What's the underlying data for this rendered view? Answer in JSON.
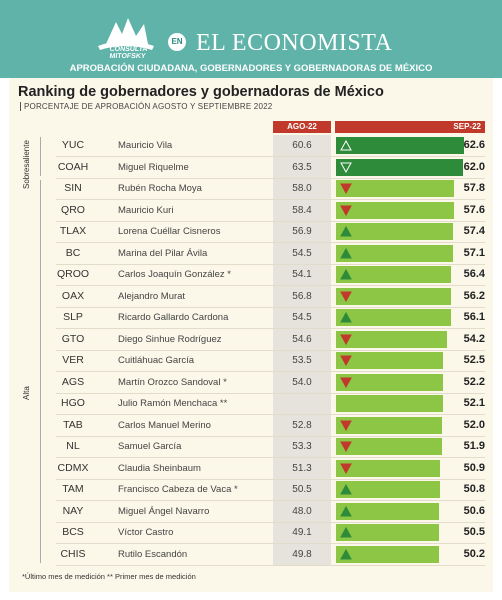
{
  "header": {
    "logo_text": "CONSULTA MITOFSKY",
    "en_badge": "EN",
    "title": "EL ECONOMISTA",
    "subtitle": "APROBACIÓN CIUDADANA, GOBERNADORES Y GOBERNADORAS DE MÉXICO"
  },
  "chart_data": {
    "type": "bar",
    "title": "Ranking de gobernadores y gobernadoras de México",
    "subtitle": "PORCENTAJE DE APROBACIÓN AGOSTO Y SEPTIEMBRE 2022",
    "columns": [
      "AGO-22",
      "SEP-22"
    ],
    "groups": [
      {
        "label": "Sobresaliente",
        "from": 0,
        "to": 1
      },
      {
        "label": "Alta",
        "from": 2,
        "to": 19
      }
    ],
    "xlim": [
      0,
      63
    ],
    "colors": {
      "up_dark": "#2e8b3a",
      "up": "#8dc544",
      "down": "#8dc544",
      "header": "#c0392b",
      "arrow_up": "#2e8b3a",
      "arrow_down": "#c0392b"
    },
    "rows": [
      {
        "code": "YUC",
        "name": "Mauricio Vila",
        "aug": "60.6",
        "sep": 62.6,
        "trend": "up",
        "tier": "Sobresaliente"
      },
      {
        "code": "COAH",
        "name": "Miguel Riquelme",
        "aug": "63.5",
        "sep": 62.0,
        "trend": "down",
        "tier": "Sobresaliente"
      },
      {
        "code": "SIN",
        "name": "Rubén Rocha Moya",
        "aug": "58.0",
        "sep": 57.8,
        "trend": "down",
        "tier": "Alta"
      },
      {
        "code": "QRO",
        "name": "Mauricio Kuri",
        "aug": "58.4",
        "sep": 57.6,
        "trend": "down",
        "tier": "Alta"
      },
      {
        "code": "TLAX",
        "name": "Lorena Cuéllar Cisneros",
        "aug": "56.9",
        "sep": 57.4,
        "trend": "up",
        "tier": "Alta"
      },
      {
        "code": "BC",
        "name": "Marina del Pilar Ávila",
        "aug": "54.5",
        "sep": 57.1,
        "trend": "up",
        "tier": "Alta"
      },
      {
        "code": "QROO",
        "name": "Carlos Joaquín González *",
        "aug": "54.1",
        "sep": 56.4,
        "trend": "up",
        "tier": "Alta"
      },
      {
        "code": "OAX",
        "name": "Alejandro Murat",
        "aug": "56.8",
        "sep": 56.2,
        "trend": "down",
        "tier": "Alta"
      },
      {
        "code": "SLP",
        "name": "Ricardo Gallardo Cardona",
        "aug": "54.5",
        "sep": 56.1,
        "trend": "up",
        "tier": "Alta"
      },
      {
        "code": "GTO",
        "name": "Diego Sinhue Rodríguez",
        "aug": "54.6",
        "sep": 54.2,
        "trend": "down",
        "tier": "Alta"
      },
      {
        "code": "VER",
        "name": "Cuitláhuac García",
        "aug": "53.5",
        "sep": 52.5,
        "trend": "down",
        "tier": "Alta"
      },
      {
        "code": "AGS",
        "name": "Martín Orozco Sandoval *",
        "aug": "54.0",
        "sep": 52.2,
        "trend": "down",
        "tier": "Alta"
      },
      {
        "code": "HGO",
        "name": "Julio Ramón Menchaca **",
        "aug": "",
        "sep": 52.1,
        "trend": "none",
        "tier": "Alta"
      },
      {
        "code": "TAB",
        "name": "Carlos Manuel Merino",
        "aug": "52.8",
        "sep": 52.0,
        "trend": "down",
        "tier": "Alta"
      },
      {
        "code": "NL",
        "name": "Samuel García",
        "aug": "53.3",
        "sep": 51.9,
        "trend": "down",
        "tier": "Alta"
      },
      {
        "code": "CDMX",
        "name": "Claudia Sheinbaum",
        "aug": "51.3",
        "sep": 50.9,
        "trend": "down",
        "tier": "Alta"
      },
      {
        "code": "TAM",
        "name": "Francisco Cabeza de Vaca *",
        "aug": "50.5",
        "sep": 50.8,
        "trend": "up",
        "tier": "Alta"
      },
      {
        "code": "NAY",
        "name": "Miguel Ángel Navarro",
        "aug": "48.0",
        "sep": 50.6,
        "trend": "up",
        "tier": "Alta"
      },
      {
        "code": "BCS",
        "name": "Víctor Castro",
        "aug": "49.1",
        "sep": 50.5,
        "trend": "up",
        "tier": "Alta"
      },
      {
        "code": "CHIS",
        "name": "Rutilo Escandón",
        "aug": "49.8",
        "sep": 50.2,
        "trend": "up",
        "tier": "Alta"
      }
    ],
    "footnote": "*Último mes de medición  ** Primer mes de medición"
  }
}
